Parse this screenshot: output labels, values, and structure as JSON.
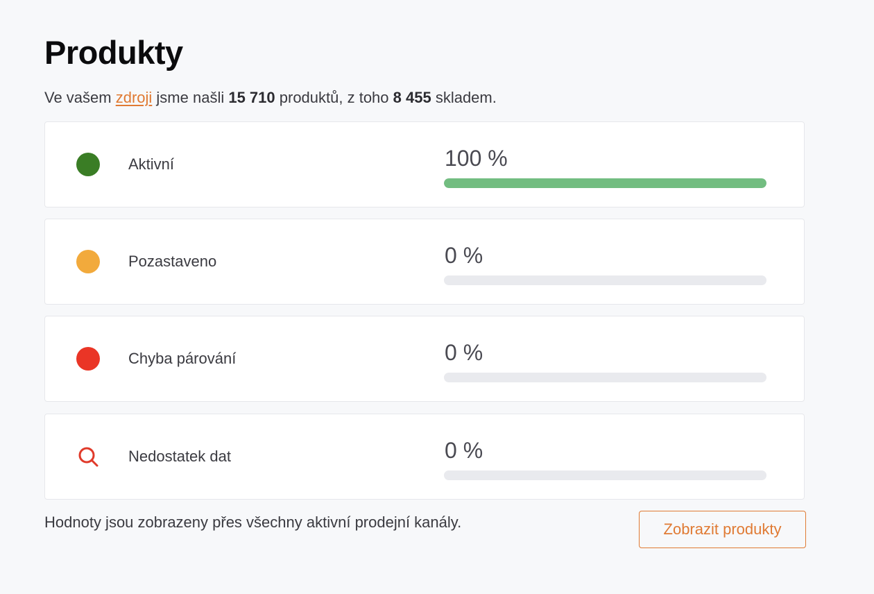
{
  "title": "Produkty",
  "summary": {
    "prefix": "Ve vašem ",
    "link_text": "zdroji",
    "middle": " jsme našli ",
    "total_products": "15 710",
    "after_total": " produktů, z toho ",
    "in_stock": "8 455",
    "suffix": " skladem."
  },
  "statuses": [
    {
      "label": "Aktivní",
      "percent_text": "100 %",
      "percent": 100,
      "icon": "green-dot-icon",
      "color": "#3a7d25"
    },
    {
      "label": "Pozastaveno",
      "percent_text": "0 %",
      "percent": 0,
      "icon": "orange-dot-icon",
      "color": "#f2aa3c"
    },
    {
      "label": "Chyba párování",
      "percent_text": "0 %",
      "percent": 0,
      "icon": "red-dot-icon",
      "color": "#ea3526"
    },
    {
      "label": "Nedostatek dat",
      "percent_text": "0 %",
      "percent": 0,
      "icon": "magnifier-icon",
      "color": "#e03a2a"
    }
  ],
  "footer": {
    "note": "Hodnoty jsou zobrazeny přes všechny aktivní prodejní kanály.",
    "button_label": "Zobrazit produkty"
  },
  "colors": {
    "accent": "#e07a33",
    "progress_fill": "#72bd80",
    "progress_track": "#e9eaee"
  }
}
